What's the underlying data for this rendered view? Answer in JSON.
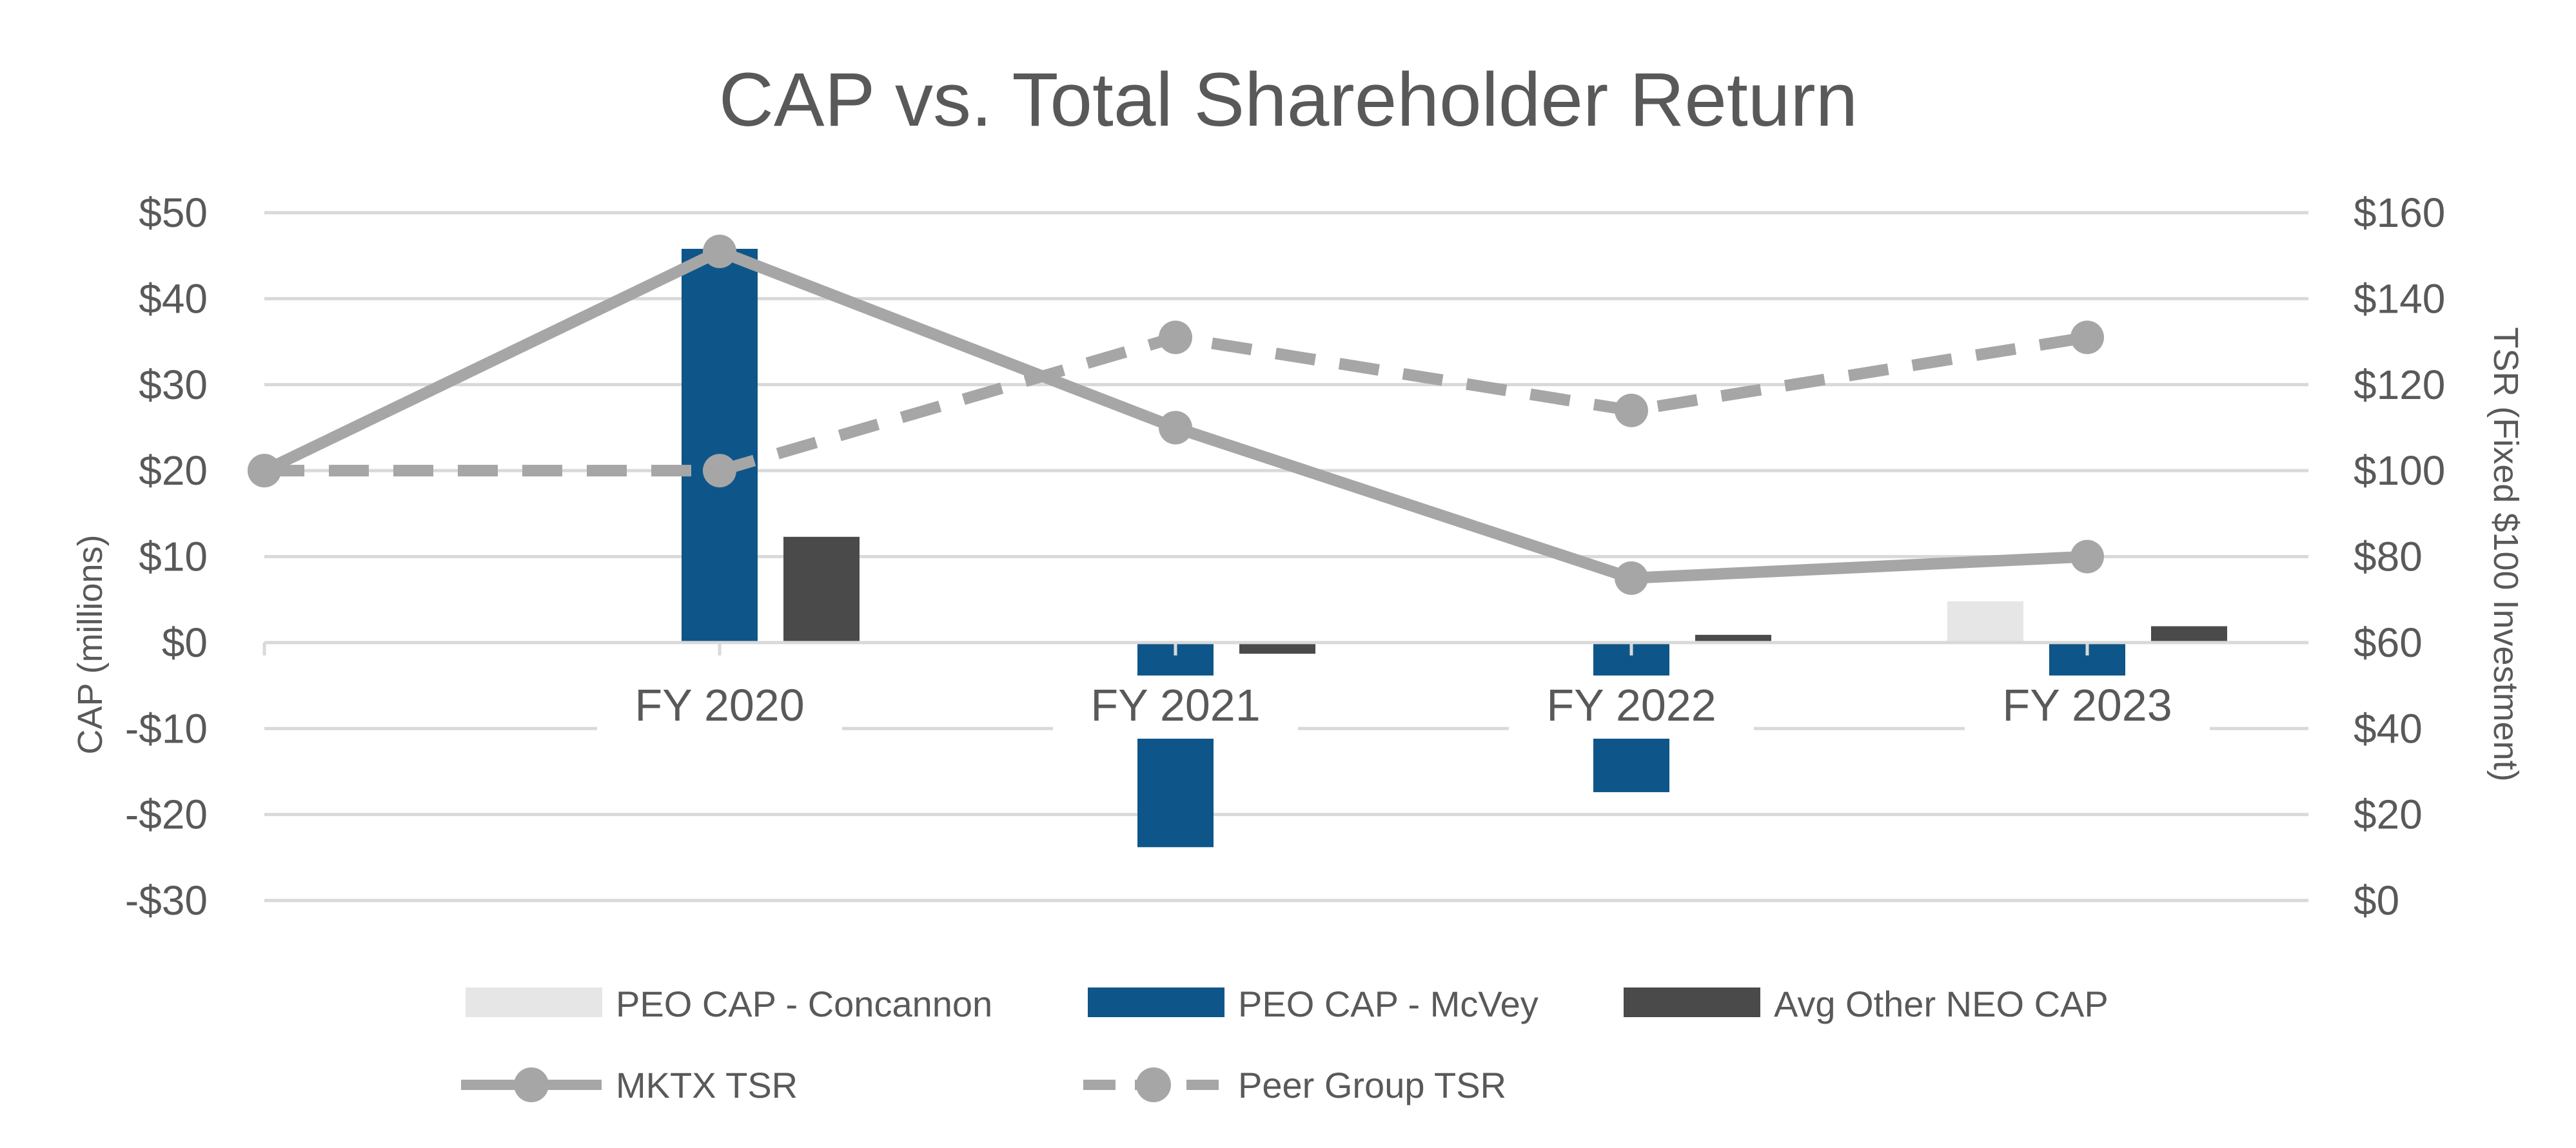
{
  "chart_data": {
    "type": "bar",
    "title": "CAP vs. Total Shareholder Return",
    "categories": [
      "FY 2020",
      "FY 2021",
      "FY 2022",
      "FY 2023"
    ],
    "ylabel": "CAP (millions)",
    "y2label": "TSR (Fixed $100 Investment)",
    "ylim": [
      -30,
      50
    ],
    "y2lim": [
      0,
      160
    ],
    "yticks": [
      50,
      40,
      30,
      20,
      10,
      0,
      -10,
      -20,
      -30
    ],
    "ytick_labels": [
      "$50",
      "$40",
      "$30",
      "$20",
      "$10",
      "$0",
      "-$10",
      "-$20",
      "-$30"
    ],
    "y2ticks": [
      160,
      140,
      120,
      100,
      80,
      60,
      40,
      20,
      0
    ],
    "y2tick_labels": [
      "$160",
      "$140",
      "$120",
      "$100",
      "$80",
      "$60",
      "$40",
      "$20",
      "$0"
    ],
    "bar_series": [
      {
        "name": "PEO CAP - Concannon",
        "color": "#e6e6e6",
        "values": [
          0,
          0,
          0,
          4.8
        ]
      },
      {
        "name": "PEO CAP - McVey",
        "color": "#0e5689",
        "values": [
          45.8,
          -23.8,
          -17.4,
          -4.6
        ]
      },
      {
        "name": "Avg Other NEO CAP",
        "color": "#4a4a4a",
        "values": [
          12.3,
          -1.3,
          0.9,
          1.9
        ]
      }
    ],
    "line_series": [
      {
        "name": "MKTX TSR",
        "color": "#a6a6a6",
        "style": "solid",
        "x": [
          -1,
          0,
          1,
          2,
          3
        ],
        "values": [
          100,
          151,
          110,
          75,
          80
        ]
      },
      {
        "name": "Peer Group TSR",
        "color": "#a6a6a6",
        "style": "dashed",
        "x": [
          -1,
          0,
          1,
          2,
          3
        ],
        "values": [
          100,
          100,
          131,
          114,
          131
        ]
      }
    ],
    "legend": "bottom"
  }
}
